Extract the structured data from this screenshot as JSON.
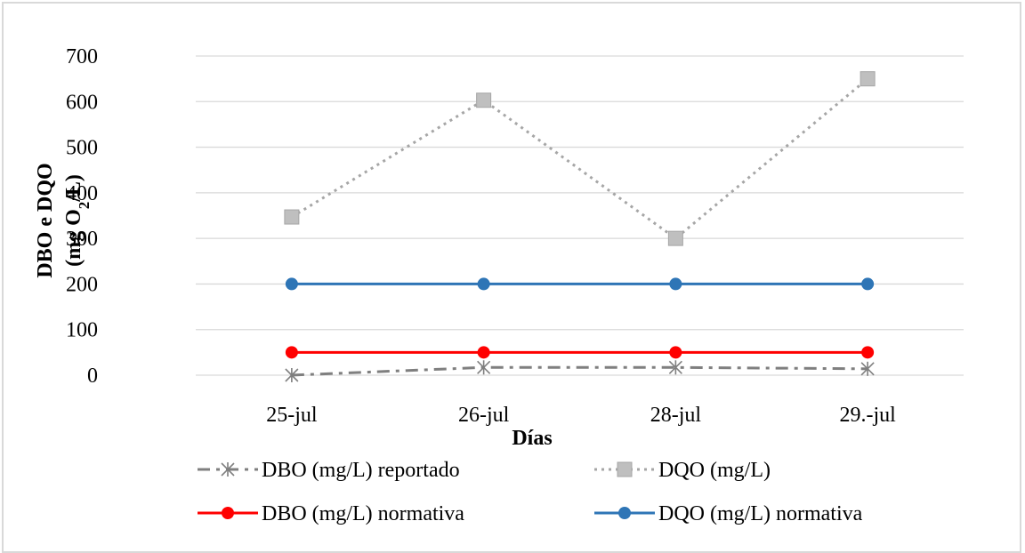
{
  "chart_data": {
    "type": "line",
    "xlabel": "Días",
    "ylabel_line1": "DBO e DQO",
    "ylabel_line2_prefix": "(mg O",
    "ylabel_line2_sub": "2",
    "ylabel_line2_suffix": "/L)",
    "ylim": [
      0,
      700
    ],
    "yticks": [
      0,
      100,
      200,
      300,
      400,
      500,
      600,
      700
    ],
    "categories": [
      "25-jul",
      "26-jul",
      "28-jul",
      "29.-jul"
    ],
    "grid": true,
    "legend_position": "bottom",
    "series": [
      {
        "name": "DBO (mg/L) reportado",
        "values": [
          0,
          17,
          17,
          14
        ],
        "color": "#7f7f7f",
        "marker": "asterisk",
        "line": "dash-dot"
      },
      {
        "name": "DQO (mg/L)",
        "values": [
          347,
          603,
          300,
          650
        ],
        "color": "#a6a6a6",
        "marker": "square",
        "line": "dotted"
      },
      {
        "name": "DBO (mg/L) normativa",
        "values": [
          50,
          50,
          50,
          50
        ],
        "color": "#ff0000",
        "marker": "circle",
        "line": "solid"
      },
      {
        "name": "DQO (mg/L) normativa",
        "values": [
          200,
          200,
          200,
          200
        ],
        "color": "#2e75b6",
        "marker": "circle",
        "line": "solid"
      }
    ]
  }
}
